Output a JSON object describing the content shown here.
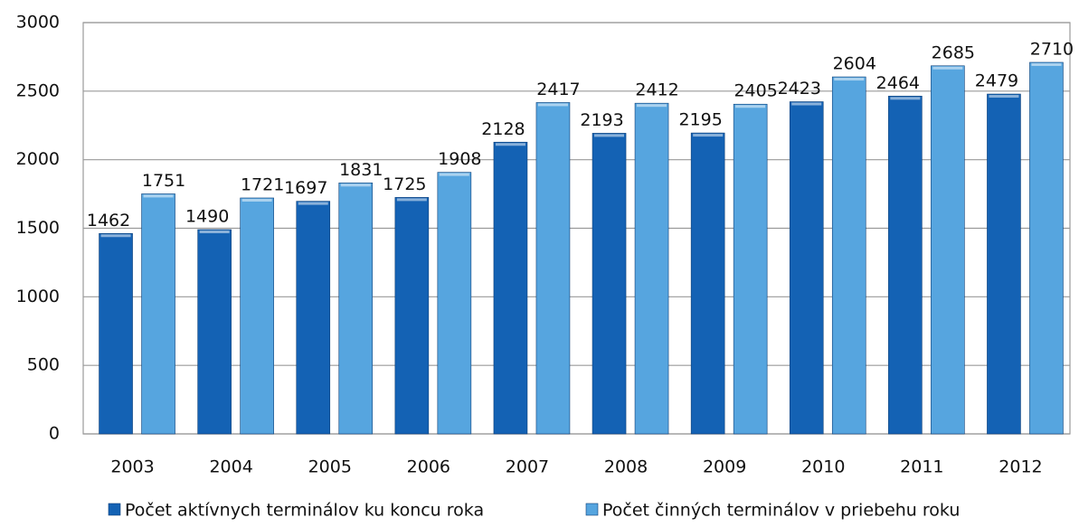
{
  "chart_data": {
    "type": "bar",
    "categories": [
      "2003",
      "2004",
      "2005",
      "2006",
      "2007",
      "2008",
      "2009",
      "2010",
      "2011",
      "2012"
    ],
    "series": [
      {
        "name": "Počet aktívnych terminálov ku koncu roka",
        "color": "#1462b4",
        "values": [
          1462,
          1490,
          1697,
          1725,
          2128,
          2193,
          2195,
          2423,
          2464,
          2479
        ]
      },
      {
        "name": "Počet činných terminálov v priebehu roku",
        "color": "#56a5df",
        "values": [
          1751,
          1721,
          1831,
          1908,
          2417,
          2412,
          2405,
          2604,
          2685,
          2710
        ]
      }
    ],
    "ylim": [
      0,
      3000
    ],
    "yticks": [
      0,
      500,
      1000,
      1500,
      2000,
      2500,
      3000
    ],
    "grid": true,
    "legend": "bottom"
  }
}
